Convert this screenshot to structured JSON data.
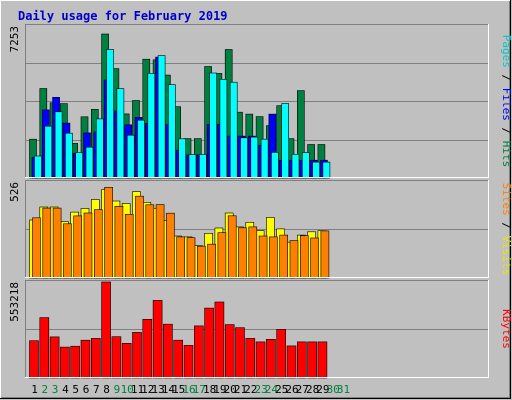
{
  "chart_data": {
    "type": "bar",
    "title": "Daily usage for February 2019",
    "x": [
      "1",
      "2",
      "3",
      "4",
      "5",
      "6",
      "7",
      "8",
      "9",
      "10",
      "11",
      "12",
      "13",
      "14",
      "15",
      "16",
      "17",
      "18",
      "19",
      "20",
      "21",
      "22",
      "23",
      "24",
      "25",
      "26",
      "27",
      "28",
      "29",
      "30",
      "31"
    ],
    "weekend_days": [
      "2",
      "3",
      "9",
      "10",
      "16",
      "17",
      "23",
      "24",
      "30",
      "31"
    ],
    "panels": [
      {
        "id": "pages-files-hits",
        "ymax_label": "7253",
        "ymax": 7253,
        "axis_label_parts": [
          "Pages",
          " / ",
          "Files",
          " / ",
          "Hits"
        ],
        "series": [
          {
            "name": "Hits",
            "color": "#008040",
            "values": [
              1850,
              4270,
              3590,
              3550,
              1650,
              2920,
              3280,
              6870,
              5220,
              3060,
              3700,
              5670,
              5640,
              4910,
              3400,
              1880,
              1880,
              5320,
              4990,
              6130,
              3140,
              3050,
              2930,
              2500,
              3450,
              1880,
              4170,
              1600,
              1600
            ]
          },
          {
            "name": "Files",
            "color": "#0000ff",
            "values": [
              990,
              3250,
              3850,
              2620,
              1170,
              2150,
              2200,
              4680,
              3200,
              2540,
              2890,
              2600,
              5770,
              2550,
              1330,
              1100,
              1100,
              2560,
              2560,
              2000,
              2000,
              2000,
              1550,
              3050,
              850,
              850,
              850,
              850,
              850
            ]
          },
          {
            "name": "Pages",
            "color": "#00ffff",
            "values": [
              1050,
              2470,
              3160,
              2140,
              1210,
              1470,
              2820,
              6130,
              4260,
              2040,
              2760,
              4990,
              5840,
              4450,
              1870,
              1110,
              1120,
              5010,
              4710,
              4570,
              1920,
              1950,
              1850,
              1220,
              3550,
              1130,
              1210,
              760,
              760
            ]
          }
        ]
      },
      {
        "id": "visits-sites",
        "ymax_label": "526",
        "ymax": 526,
        "axis_label_parts": [
          "Sites",
          " / ",
          "Visits"
        ],
        "series": [
          {
            "name": "Visits",
            "color": "#ffff00",
            "values": [
              318,
              389,
              389,
              309,
              361,
              381,
              430,
              485,
              422,
              408,
              473,
              415,
              382,
              315,
              230,
              225,
              177,
              245,
              274,
              356,
              280,
              305,
              259,
              332,
              269,
              196,
              235,
              253,
              259
            ]
          },
          {
            "name": "Sites",
            "color": "#ff8000",
            "values": [
              330,
              383,
              383,
              297,
              340,
              356,
              375,
              497,
              393,
              349,
              448,
              401,
              402,
              355,
              225,
              221,
              174,
              185,
              248,
              341,
              275,
              280,
              230,
              225,
              235,
              205,
              232,
              219,
              258
            ]
          }
        ]
      },
      {
        "id": "kbytes",
        "ymax_label": "553218",
        "ymax": 553218,
        "axis_label_parts": [
          "KBytes"
        ],
        "series": [
          {
            "name": "KBytes",
            "color": "#ff0000",
            "values": [
              215000,
              348000,
              237000,
              178000,
              183000,
              218000,
              228000,
              553218,
              238000,
              200000,
              263000,
              338000,
              447000,
              310000,
              218000,
              188000,
              300000,
              403000,
              438000,
              308000,
              290000,
              228000,
              208000,
              223000,
              280000,
              185000,
              208000,
              208000,
              208000
            ]
          }
        ]
      }
    ]
  }
}
